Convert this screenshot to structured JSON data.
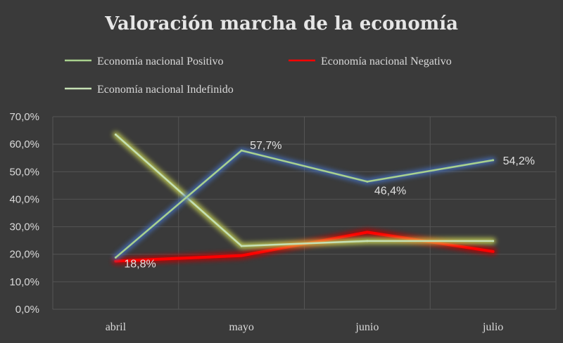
{
  "chart_data": {
    "type": "line",
    "title": "Valoración marcha de la economía",
    "categories": [
      "abril",
      "mayo",
      "junio",
      "julio"
    ],
    "ylim": [
      0,
      70
    ],
    "yticks": [
      "0,0%",
      "10,0%",
      "20,0%",
      "30,0%",
      "40,0%",
      "50,0%",
      "60,0%",
      "70,0%"
    ],
    "grid": true,
    "legend_position": "top",
    "series": [
      {
        "name": "Economía nacional Positivo",
        "values": [
          18.8,
          57.7,
          46.4,
          54.2
        ],
        "color": "#a9d18e",
        "glow": "#4472c4",
        "labels": [
          "18,8%",
          "57,7%",
          "46,4%",
          "54,2%"
        ]
      },
      {
        "name": "Economía nacional Negativo",
        "values": [
          17.5,
          19.5,
          28.0,
          21.0
        ],
        "color": "#ff0000",
        "glow": "#c00000",
        "labels": [
          "",
          "",
          "",
          ""
        ]
      },
      {
        "name": "Economía nacional Indefinido",
        "values": [
          63.5,
          23.0,
          24.8,
          24.8
        ],
        "color": "#c5e0b4",
        "glow": "#d4e157",
        "labels": [
          "",
          "",
          "",
          ""
        ]
      }
    ]
  }
}
